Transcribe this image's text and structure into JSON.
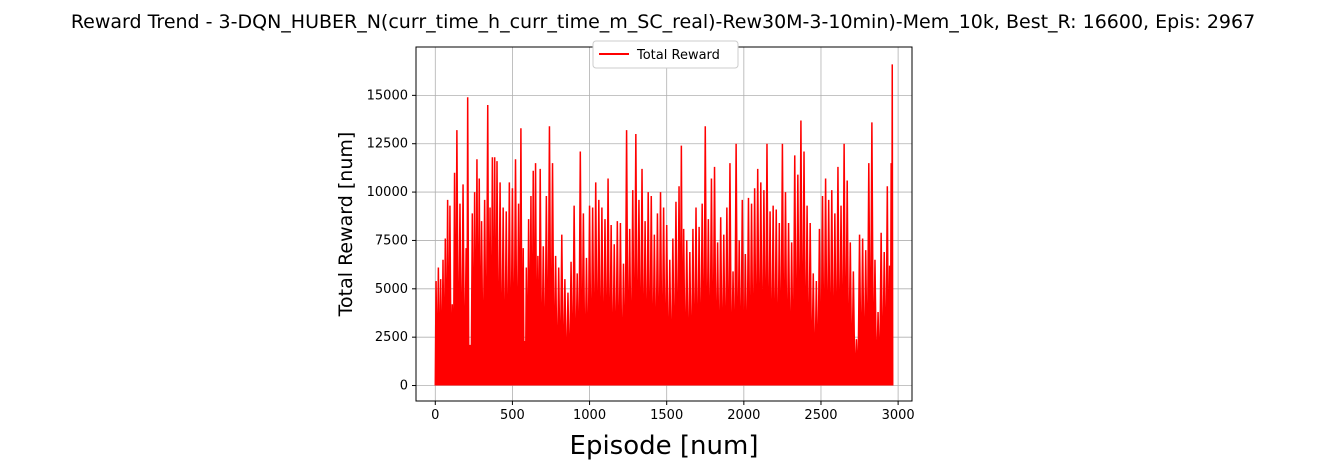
{
  "chart_data": {
    "type": "line",
    "title": "Reward Trend - 3-DQN_HUBER_N(curr_time_h_curr_time_m_SC_real)-Rew30M-3-10min)-Mem_10k, Best_R: 16600, Epis: 2967",
    "xlabel": "Episode [num]",
    "ylabel": "Total Reward [num]",
    "xlim": [
      -125,
      3090
    ],
    "ylim": [
      -800,
      17500
    ],
    "xticks": [
      0,
      500,
      1000,
      1500,
      2000,
      2500,
      3000
    ],
    "yticks": [
      0,
      2500,
      5000,
      7500,
      10000,
      12500,
      15000
    ],
    "grid": true,
    "legend": {
      "location": "upper center",
      "entries": [
        "Total Reward"
      ]
    },
    "series": [
      {
        "name": "Total Reward",
        "color": "#ff0000",
        "episodes": 2967,
        "max": 16600,
        "min": 0,
        "peaks": [
          [
            5,
            5400
          ],
          [
            20,
            6100
          ],
          [
            35,
            5500
          ],
          [
            50,
            6500
          ],
          [
            65,
            7600
          ],
          [
            80,
            9600
          ],
          [
            95,
            9300
          ],
          [
            110,
            4200
          ],
          [
            125,
            11000
          ],
          [
            140,
            13200
          ],
          [
            160,
            9400
          ],
          [
            180,
            10400
          ],
          [
            200,
            7100
          ],
          [
            210,
            14900
          ],
          [
            225,
            2100
          ],
          [
            240,
            8900
          ],
          [
            255,
            10000
          ],
          [
            270,
            11700
          ],
          [
            285,
            10700
          ],
          [
            300,
            8500
          ],
          [
            320,
            9600
          ],
          [
            340,
            14500
          ],
          [
            355,
            9200
          ],
          [
            370,
            11800
          ],
          [
            385,
            11800
          ],
          [
            400,
            11600
          ],
          [
            420,
            10500
          ],
          [
            440,
            9200
          ],
          [
            460,
            9000
          ],
          [
            480,
            10500
          ],
          [
            500,
            10200
          ],
          [
            520,
            11700
          ],
          [
            540,
            9400
          ],
          [
            555,
            13300
          ],
          [
            570,
            7100
          ],
          [
            580,
            2300
          ],
          [
            590,
            6100
          ],
          [
            605,
            8600
          ],
          [
            620,
            9800
          ],
          [
            635,
            11100
          ],
          [
            650,
            11500
          ],
          [
            665,
            6700
          ],
          [
            680,
            11200
          ],
          [
            700,
            7200
          ],
          [
            720,
            9800
          ],
          [
            740,
            13400
          ],
          [
            760,
            11500
          ],
          [
            780,
            6700
          ],
          [
            800,
            6100
          ],
          [
            820,
            7800
          ],
          [
            840,
            5500
          ],
          [
            860,
            4800
          ],
          [
            880,
            6400
          ],
          [
            900,
            9300
          ],
          [
            920,
            5800
          ],
          [
            940,
            12100
          ],
          [
            960,
            8900
          ],
          [
            980,
            6600
          ],
          [
            1000,
            9300
          ],
          [
            1020,
            9200
          ],
          [
            1040,
            10500
          ],
          [
            1060,
            9600
          ],
          [
            1080,
            9200
          ],
          [
            1100,
            8600
          ],
          [
            1120,
            10700
          ],
          [
            1140,
            8300
          ],
          [
            1160,
            7300
          ],
          [
            1180,
            8500
          ],
          [
            1200,
            8400
          ],
          [
            1220,
            6300
          ],
          [
            1240,
            13200
          ],
          [
            1260,
            8100
          ],
          [
            1280,
            10100
          ],
          [
            1300,
            13000
          ],
          [
            1320,
            9600
          ],
          [
            1340,
            11200
          ],
          [
            1360,
            8500
          ],
          [
            1380,
            10000
          ],
          [
            1400,
            9800
          ],
          [
            1420,
            7800
          ],
          [
            1440,
            8900
          ],
          [
            1460,
            10000
          ],
          [
            1480,
            9200
          ],
          [
            1500,
            8300
          ],
          [
            1520,
            6500
          ],
          [
            1540,
            7600
          ],
          [
            1560,
            9500
          ],
          [
            1580,
            10300
          ],
          [
            1595,
            12400
          ],
          [
            1610,
            8100
          ],
          [
            1630,
            7500
          ],
          [
            1650,
            6900
          ],
          [
            1670,
            8100
          ],
          [
            1690,
            9200
          ],
          [
            1710,
            8200
          ],
          [
            1730,
            9400
          ],
          [
            1750,
            13400
          ],
          [
            1770,
            8600
          ],
          [
            1790,
            10700
          ],
          [
            1810,
            11300
          ],
          [
            1830,
            7400
          ],
          [
            1850,
            8700
          ],
          [
            1870,
            7800
          ],
          [
            1890,
            9200
          ],
          [
            1910,
            11500
          ],
          [
            1930,
            5900
          ],
          [
            1950,
            12500
          ],
          [
            1970,
            7500
          ],
          [
            1990,
            9600
          ],
          [
            2010,
            6800
          ],
          [
            2030,
            9700
          ],
          [
            2050,
            9400
          ],
          [
            2070,
            10200
          ],
          [
            2090,
            11200
          ],
          [
            2110,
            10500
          ],
          [
            2130,
            10100
          ],
          [
            2150,
            12500
          ],
          [
            2170,
            9000
          ],
          [
            2190,
            9300
          ],
          [
            2210,
            9100
          ],
          [
            2230,
            8400
          ],
          [
            2250,
            12500
          ],
          [
            2270,
            10000
          ],
          [
            2290,
            8400
          ],
          [
            2310,
            7400
          ],
          [
            2330,
            11900
          ],
          [
            2350,
            10900
          ],
          [
            2370,
            13700
          ],
          [
            2390,
            12100
          ],
          [
            2410,
            9300
          ],
          [
            2430,
            8400
          ],
          [
            2450,
            5800
          ],
          [
            2470,
            5400
          ],
          [
            2490,
            8100
          ],
          [
            2510,
            9800
          ],
          [
            2530,
            10700
          ],
          [
            2550,
            9600
          ],
          [
            2570,
            10100
          ],
          [
            2590,
            8900
          ],
          [
            2610,
            11300
          ],
          [
            2630,
            9300
          ],
          [
            2650,
            12500
          ],
          [
            2670,
            10600
          ],
          [
            2690,
            7400
          ],
          [
            2710,
            5900
          ],
          [
            2730,
            2400
          ],
          [
            2750,
            7800
          ],
          [
            2770,
            7600
          ],
          [
            2790,
            7000
          ],
          [
            2810,
            11500
          ],
          [
            2830,
            13600
          ],
          [
            2850,
            6500
          ],
          [
            2870,
            3800
          ],
          [
            2890,
            7900
          ],
          [
            2910,
            6900
          ],
          [
            2930,
            10300
          ],
          [
            2945,
            6200
          ],
          [
            2955,
            11500
          ],
          [
            2962,
            16600
          ]
        ]
      }
    ]
  }
}
